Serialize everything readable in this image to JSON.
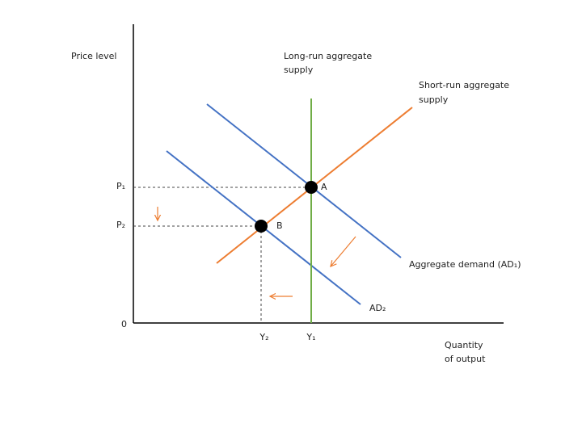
{
  "axes": {
    "y_label": "Price level",
    "x_label": [
      "Quantity",
      "of output"
    ],
    "origin": "0"
  },
  "curves": {
    "lras": [
      "Long-run aggregate",
      "supply"
    ],
    "sras": [
      "Short-run aggregate",
      "supply"
    ],
    "ad1": "Aggregate demand (AD₁)",
    "ad2": "AD₂"
  },
  "points": {
    "a": "A",
    "b": "B"
  },
  "price_levels": [
    "P₁",
    "P₂"
  ],
  "outputs": [
    "Y₂",
    "Y₁"
  ]
}
